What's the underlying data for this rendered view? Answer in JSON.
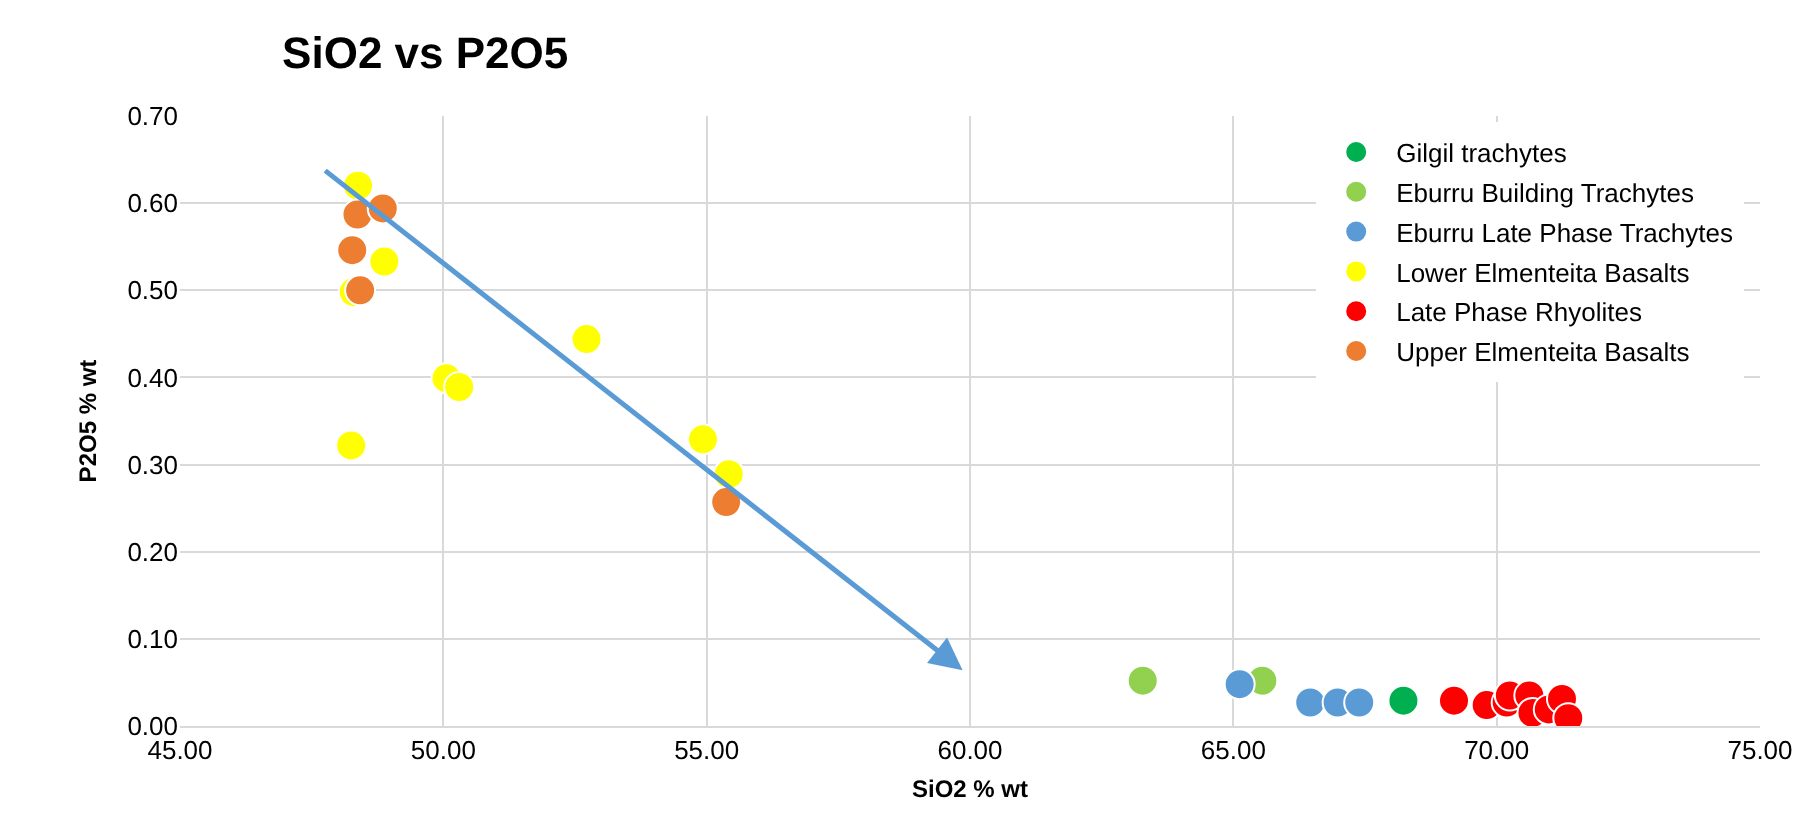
{
  "chart_data": {
    "type": "scatter",
    "title": "SiO2 vs P2O5",
    "xlabel": "SiO2 % wt",
    "ylabel": "P2O5 % wt",
    "marker": "circle",
    "grid": true,
    "legend": "top right",
    "xlim": [
      45,
      75
    ],
    "xticks": [
      {
        "value": 45,
        "label": "45.00"
      },
      {
        "value": 50,
        "label": "50.00"
      },
      {
        "value": 55,
        "label": "55.00"
      },
      {
        "value": 60,
        "label": "60.00"
      },
      {
        "value": 65,
        "label": "65.00"
      },
      {
        "value": 70,
        "label": "70.00"
      },
      {
        "value": 75,
        "label": "75.00"
      }
    ],
    "ylim": [
      0,
      0.7
    ],
    "yticks": [
      {
        "value": 0,
        "label": "0.00"
      },
      {
        "value": 0.1,
        "label": "0.10"
      },
      {
        "value": 0.2,
        "label": "0.20"
      },
      {
        "value": 0.3,
        "label": "0.30"
      },
      {
        "value": 0.4,
        "label": "0.40"
      },
      {
        "value": 0.5,
        "label": "0.50"
      },
      {
        "value": 0.6,
        "label": "0.60"
      },
      {
        "value": 0.7,
        "label": "0.70"
      }
    ],
    "series": [
      {
        "name": "Gilgil trachytes",
        "color": "#00b050",
        "x": [
          68.23
        ],
        "values": [
          0.029
        ]
      },
      {
        "name": "Eburru Building Trachytes",
        "color": "#92d050",
        "x": [
          63.28,
          65.55
        ],
        "values": [
          0.052,
          0.052
        ]
      },
      {
        "name": "Eburru Late Phase Trachytes",
        "color": "#5b9bd5",
        "x": [
          65.12,
          66.46,
          66.98,
          67.39
        ],
        "values": [
          0.048,
          0.027,
          0.027,
          0.027
        ]
      },
      {
        "name": "Lower Elmenteita Basalts",
        "color": "#ffff00",
        "x": [
          48.38,
          48.88,
          48.3,
          50.06,
          50.3,
          48.25,
          52.72,
          54.93,
          55.42
        ],
        "values": [
          0.62,
          0.533,
          0.498,
          0.399,
          0.389,
          0.322,
          0.444,
          0.329,
          0.289
        ]
      },
      {
        "name": "Late Phase Rhyolites",
        "color": "#ff0000",
        "x": [
          69.19,
          69.81,
          70.19,
          70.25,
          70.62,
          70.68,
          70.99,
          71.24,
          71.36
        ],
        "values": [
          0.029,
          0.024,
          0.027,
          0.035,
          0.035,
          0.015,
          0.019,
          0.031,
          0.009
        ]
      },
      {
        "name": "Upper Elmenteita Basalts",
        "color": "#ed7d31",
        "x": [
          48.37,
          48.85,
          48.27,
          48.42,
          55.37
        ],
        "values": [
          0.587,
          0.594,
          0.546,
          0.5,
          0.257
        ]
      }
    ]
  }
}
